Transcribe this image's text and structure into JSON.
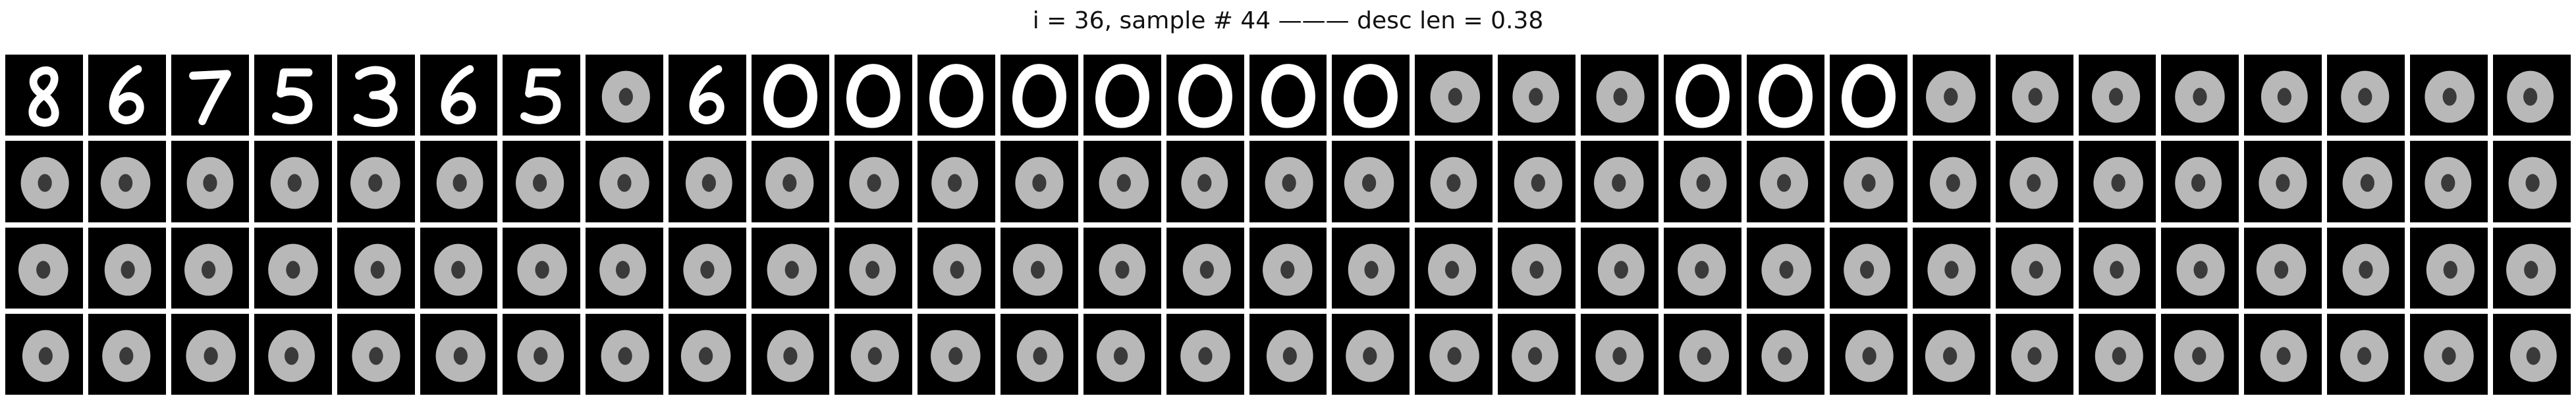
{
  "title": "i = 36, sample # 44 ——— desc len = 0.38",
  "colors": {
    "background": "#ffffff",
    "tile_background": "#000000",
    "glyph_sharp": "#ffffff",
    "glyph_blurry": "#c8c8c8"
  },
  "grid": {
    "rows": 4,
    "columns": 31,
    "row_contents": [
      [
        "digit-8",
        "digit-6",
        "digit-7",
        "digit-5",
        "digit-3",
        "digit-6",
        "digit-5",
        "blob",
        "digit-6",
        "digit-0",
        "digit-0",
        "digit-0",
        "digit-0",
        "digit-0",
        "digit-0",
        "digit-0",
        "digit-0",
        "blob",
        "blob",
        "blob",
        "digit-0",
        "digit-0",
        "digit-0",
        "blob",
        "blob",
        "blob",
        "blob",
        "blob",
        "blob",
        "blob",
        "blob"
      ],
      [
        "blob",
        "blob",
        "blob",
        "blob",
        "blob",
        "blob",
        "blob",
        "blob",
        "blob",
        "blob",
        "blob",
        "blob",
        "blob",
        "blob",
        "blob",
        "blob",
        "blob",
        "blob",
        "blob",
        "blob",
        "blob",
        "blob",
        "blob",
        "blob",
        "blob",
        "blob",
        "blob",
        "blob",
        "blob",
        "blob",
        "blob"
      ],
      [
        "blob",
        "blob",
        "blob",
        "blob",
        "blob",
        "blob",
        "blob",
        "blob",
        "blob",
        "blob",
        "blob",
        "blob",
        "blob",
        "blob",
        "blob",
        "blob",
        "blob",
        "blob",
        "blob",
        "blob",
        "blob",
        "blob",
        "blob",
        "blob",
        "blob",
        "blob",
        "blob",
        "blob",
        "blob",
        "blob",
        "blob"
      ],
      [
        "blob",
        "blob",
        "blob",
        "blob",
        "blob",
        "blob",
        "blob",
        "blob",
        "blob",
        "blob",
        "blob",
        "blob",
        "blob",
        "blob",
        "blob",
        "blob",
        "blob",
        "blob",
        "blob",
        "blob",
        "blob",
        "blob",
        "blob",
        "blob",
        "blob",
        "blob",
        "blob",
        "blob",
        "blob",
        "blob",
        "blob"
      ]
    ]
  }
}
